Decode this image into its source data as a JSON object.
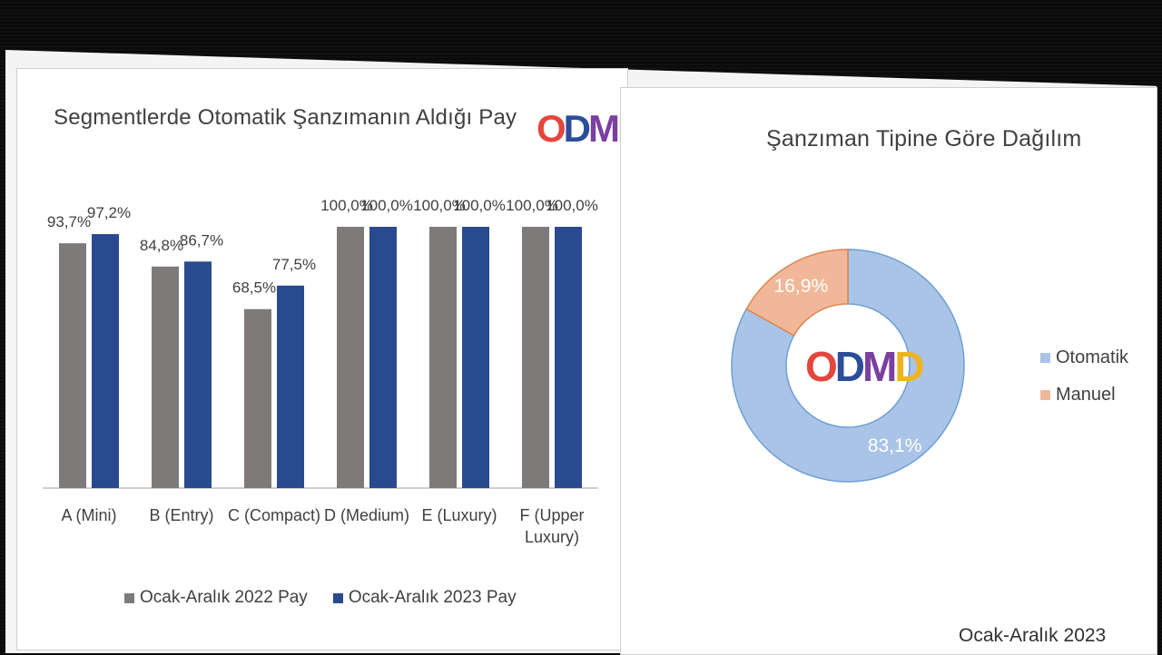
{
  "colors": {
    "series_2022": "#7f7a7a",
    "series_2023": "#2a4a8f",
    "otomatik": "#a9c4e6",
    "manuel": "#f0b898",
    "otomatik_stroke": "#6f9fd3",
    "manuel_stroke": "#e0844f"
  },
  "logo": {
    "letters": [
      "O",
      "D",
      "M",
      "D"
    ],
    "colors": [
      "#e4463e",
      "#2c4e9a",
      "#7b3fa0",
      "#f0b320"
    ]
  },
  "left_panel": {
    "title": "Segmentlerde Otomatik Şanzımanın Aldığı Pay"
  },
  "right_panel": {
    "title": "Şanzıman Tipine Göre Dağılım",
    "period": "Ocak-Aralık 2023"
  },
  "chart_data": [
    {
      "type": "bar",
      "title": "Segmentlerde Otomatik Şanzımanın Aldığı Pay",
      "categories": [
        "A (Mini)",
        "B (Entry)",
        "C (Compact)",
        "D (Medium)",
        "E (Luxury)",
        "F (Upper Luxury)"
      ],
      "category_lines": [
        [
          "A (Mini)"
        ],
        [
          "B (Entry)"
        ],
        [
          "C (Compact)"
        ],
        [
          "D (Medium)"
        ],
        [
          "E (Luxury)"
        ],
        [
          "F (Upper",
          "Luxury)"
        ]
      ],
      "series": [
        {
          "name": "Ocak-Aralık 2022 Pay",
          "values": [
            93.7,
            84.8,
            68.5,
            100.0,
            100.0,
            100.0
          ],
          "labels": [
            "93,7%",
            "84,8%",
            "68,5%",
            "100,0%",
            "100,0%",
            "100,0%"
          ]
        },
        {
          "name": "Ocak-Aralık 2023 Pay",
          "values": [
            97.2,
            86.7,
            77.5,
            100.0,
            100.0,
            100.0
          ],
          "labels": [
            "97,2%",
            "86,7%",
            "77,5%",
            "100,0%",
            "100,0%",
            "100,0%"
          ]
        }
      ],
      "ylim": [
        0,
        100
      ],
      "grid": false,
      "legend": "bottom"
    },
    {
      "type": "pie",
      "subtype": "donut",
      "title": "Şanzıman Tipine Göre Dağılım",
      "slices": [
        {
          "label": "Otomatik",
          "value": 83.1,
          "text": "83,1%"
        },
        {
          "label": "Manuel",
          "value": 16.9,
          "text": "16,9%"
        }
      ],
      "legend": "right"
    }
  ]
}
